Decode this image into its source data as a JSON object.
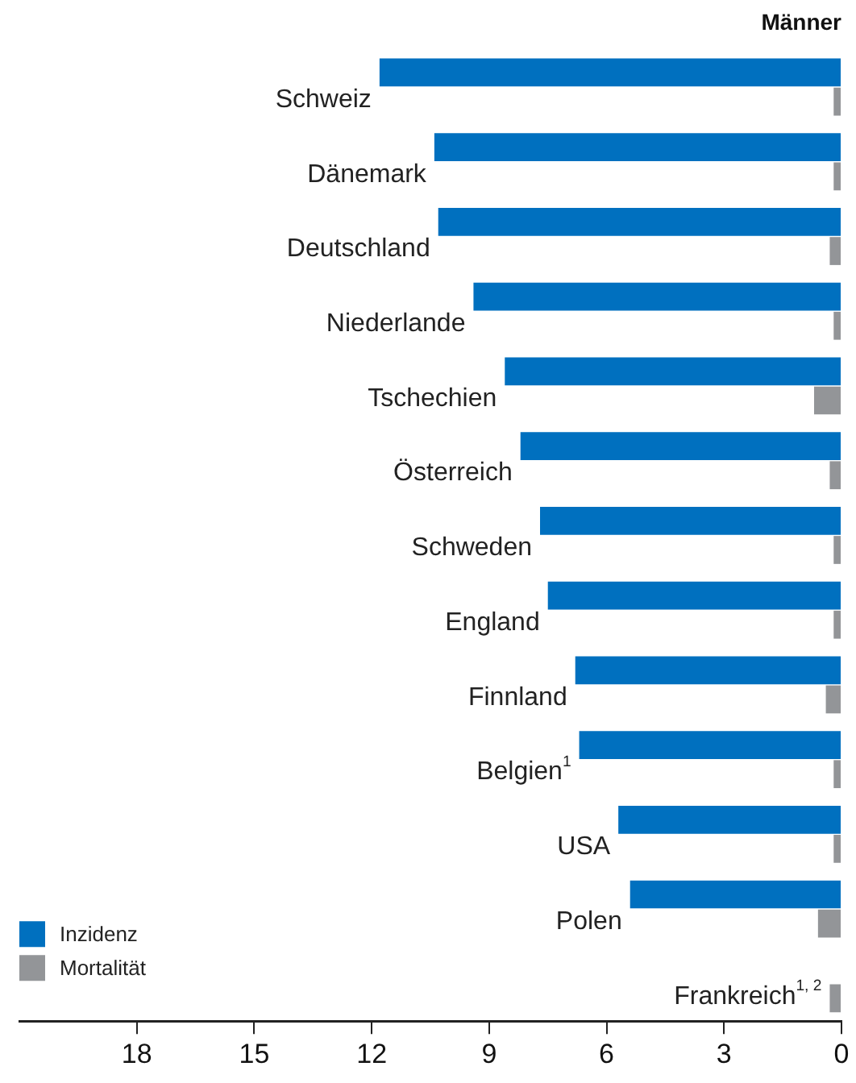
{
  "chart_data": {
    "type": "bar",
    "orientation": "horizontal",
    "title": "Männer",
    "categories": [
      "Schweiz",
      "Dänemark",
      "Deutschland",
      "Niederlande",
      "Tschechien",
      "Österreich",
      "Schweden",
      "England",
      "Finnland",
      "Belgien$^{1}$",
      "USA",
      "Polen",
      "Frankreich$^{1, 2}$"
    ],
    "series": [
      {
        "name": "Inzidenz",
        "color": "#0070bf",
        "values": [
          11.8,
          10.4,
          10.3,
          9.4,
          8.6,
          8.2,
          7.7,
          7.5,
          6.8,
          6.7,
          5.7,
          5.4,
          null
        ]
      },
      {
        "name": "Mortalität",
        "color": "#939598",
        "values": [
          0.2,
          0.2,
          0.3,
          0.2,
          0.7,
          0.3,
          0.2,
          0.2,
          0.4,
          0.2,
          0.2,
          0.6,
          0.3
        ]
      }
    ],
    "xlim": [
      21,
      0
    ],
    "xticks": [
      18,
      15,
      12,
      9,
      6,
      3,
      0
    ],
    "grid": false,
    "legend": "bottom left"
  }
}
